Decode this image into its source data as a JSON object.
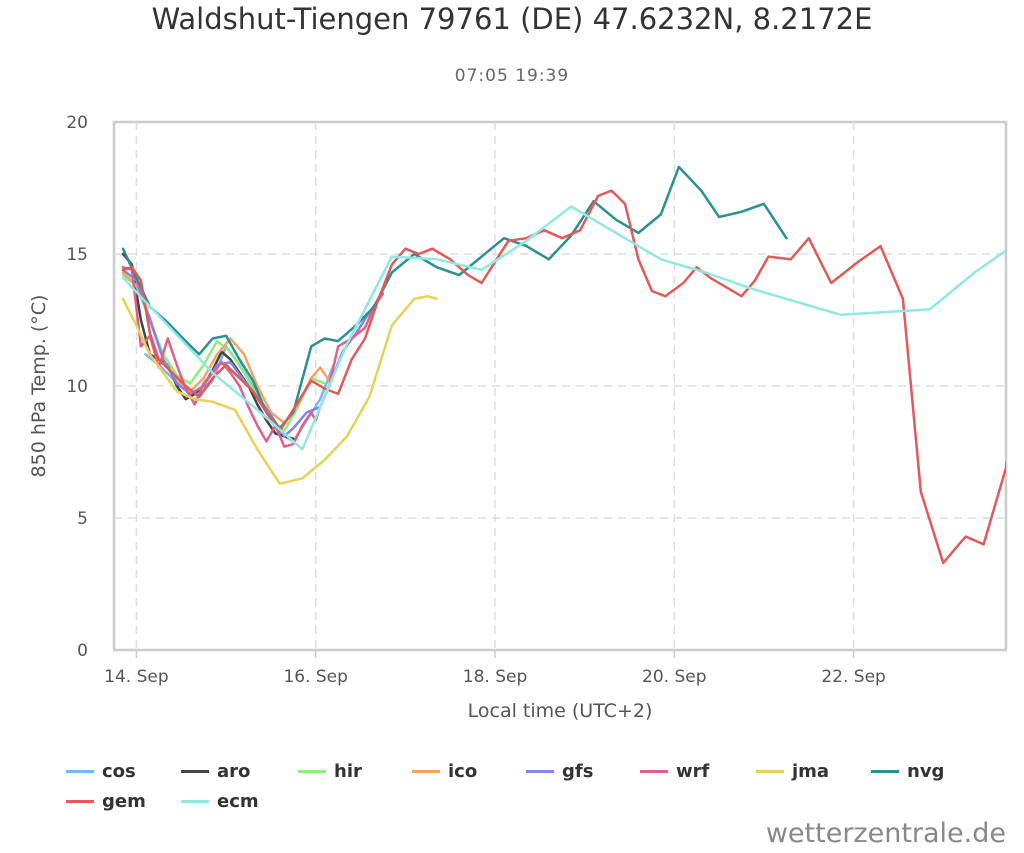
{
  "title": "Waldshut-Tiengen 79761 (DE) 47.6232N, 8.2172E",
  "subtitle": "07:05 19:39",
  "watermark": "wetterzentrale.de",
  "chart_data": {
    "type": "line",
    "title": "Waldshut-Tiengen 79761 (DE) 47.6232N, 8.2172E",
    "subtitle": "07:05 19:39",
    "xlabel": "Local time (UTC+2)",
    "ylabel": "850 hPa Temp. (°C)",
    "xlim": [
      13.6,
      23.55
    ],
    "ylim": [
      0,
      20
    ],
    "y_ticks": [
      0,
      5,
      10,
      15,
      20
    ],
    "x_ticks": [
      {
        "value": 13.85,
        "label": "14. Sep"
      },
      {
        "value": 15.85,
        "label": "16. Sep"
      },
      {
        "value": 17.85,
        "label": "18. Sep"
      },
      {
        "value": 19.85,
        "label": "20. Sep"
      },
      {
        "value": 21.85,
        "label": "22. Sep"
      }
    ],
    "grid": true,
    "legend_position": "bottom-left",
    "series": [
      {
        "name": "cos",
        "color": "#7cb5ec",
        "points": [
          [
            13.95,
            11.2
          ],
          [
            14.1,
            10.8
          ],
          [
            14.25,
            10.3
          ],
          [
            14.4,
            9.9
          ],
          [
            14.55,
            9.6
          ],
          [
            14.7,
            10.2
          ],
          [
            14.85,
            11.5
          ],
          [
            15.0,
            10.8
          ],
          [
            15.15,
            10.0
          ],
          [
            15.3,
            9.0
          ],
          [
            15.45,
            8.2
          ],
          [
            15.6,
            7.9
          ],
          [
            15.75,
            8.7
          ],
          [
            15.9,
            9.5
          ],
          [
            16.05,
            10.8
          ]
        ]
      },
      {
        "name": "aro",
        "color": "#434348",
        "points": [
          [
            13.7,
            15.0
          ],
          [
            13.8,
            14.6
          ],
          [
            13.9,
            12.5
          ],
          [
            14.0,
            11.2
          ],
          [
            14.1,
            11.0
          ],
          [
            14.2,
            10.8
          ],
          [
            14.3,
            10.0
          ],
          [
            14.4,
            9.5
          ],
          [
            14.5,
            9.7
          ],
          [
            14.6,
            10.0
          ],
          [
            14.7,
            10.6
          ],
          [
            14.8,
            11.3
          ],
          [
            14.9,
            11.0
          ],
          [
            15.0,
            10.5
          ],
          [
            15.1,
            10.0
          ],
          [
            15.2,
            9.3
          ],
          [
            15.3,
            8.7
          ],
          [
            15.4,
            8.2
          ],
          [
            15.5,
            8.1
          ],
          [
            15.6,
            8.0
          ]
        ]
      },
      {
        "name": "hir",
        "color": "#90ed7d",
        "points": [
          [
            13.7,
            14.2
          ],
          [
            13.85,
            13.8
          ],
          [
            14.0,
            12.5
          ],
          [
            14.15,
            11.2
          ],
          [
            14.3,
            10.4
          ],
          [
            14.45,
            10.1
          ],
          [
            14.6,
            10.8
          ],
          [
            14.75,
            11.7
          ],
          [
            14.9,
            11.3
          ],
          [
            15.05,
            10.5
          ],
          [
            15.2,
            9.6
          ],
          [
            15.35,
            8.7
          ],
          [
            15.5,
            8.3
          ],
          [
            15.65,
            9.2
          ],
          [
            15.8,
            10.3
          ],
          [
            15.95,
            10.1
          ]
        ]
      },
      {
        "name": "ico",
        "color": "#f7a35c",
        "points": [
          [
            13.7,
            14.3
          ],
          [
            13.85,
            13.8
          ],
          [
            14.0,
            12.6
          ],
          [
            14.15,
            11.0
          ],
          [
            14.3,
            10.2
          ],
          [
            14.45,
            9.8
          ],
          [
            14.6,
            10.3
          ],
          [
            14.75,
            11.2
          ],
          [
            14.9,
            11.8
          ],
          [
            15.05,
            11.2
          ],
          [
            15.2,
            10.0
          ],
          [
            15.35,
            9.0
          ],
          [
            15.5,
            8.6
          ],
          [
            15.65,
            9.3
          ],
          [
            15.8,
            10.3
          ],
          [
            15.9,
            10.7
          ],
          [
            16.0,
            10.2
          ],
          [
            16.05,
            10.6
          ]
        ]
      },
      {
        "name": "gfs",
        "color": "#8085e9",
        "points": [
          [
            13.7,
            14.4
          ],
          [
            13.85,
            14.0
          ],
          [
            14.0,
            12.5
          ],
          [
            14.15,
            11.0
          ],
          [
            14.3,
            10.1
          ],
          [
            14.45,
            9.7
          ],
          [
            14.6,
            10.0
          ],
          [
            14.75,
            10.8
          ],
          [
            14.9,
            10.9
          ],
          [
            15.05,
            10.2
          ],
          [
            15.2,
            9.6
          ],
          [
            15.35,
            8.9
          ],
          [
            15.5,
            8.1
          ],
          [
            15.6,
            8.4
          ],
          [
            15.75,
            9.0
          ],
          [
            15.9,
            9.2
          ],
          [
            16.0,
            10.0
          ],
          [
            16.15,
            11.3
          ],
          [
            16.3,
            12.0
          ],
          [
            16.45,
            12.8
          ],
          [
            16.6,
            13.5
          ]
        ]
      },
      {
        "name": "wrf",
        "color": "#e0608a",
        "points": [
          [
            13.7,
            14.5
          ],
          [
            13.8,
            14.4
          ],
          [
            13.9,
            11.5
          ],
          [
            14.0,
            11.9
          ],
          [
            14.1,
            10.7
          ],
          [
            14.2,
            11.8
          ],
          [
            14.3,
            10.8
          ],
          [
            14.4,
            9.9
          ],
          [
            14.5,
            9.3
          ],
          [
            14.6,
            10.1
          ],
          [
            14.7,
            10.5
          ],
          [
            14.8,
            10.9
          ],
          [
            14.9,
            10.5
          ],
          [
            15.0,
            10.0
          ],
          [
            15.1,
            9.2
          ],
          [
            15.2,
            8.5
          ],
          [
            15.3,
            7.9
          ],
          [
            15.4,
            8.5
          ],
          [
            15.5,
            7.7
          ],
          [
            15.6,
            7.8
          ],
          [
            15.7,
            8.5
          ],
          [
            15.8,
            9.0
          ],
          [
            15.85,
            8.7
          ],
          [
            15.9,
            9.2
          ],
          [
            16.0,
            10.0
          ],
          [
            16.1,
            11.5
          ],
          [
            16.25,
            11.8
          ],
          [
            16.4,
            12.2
          ],
          [
            16.5,
            13.0
          ],
          [
            16.6,
            13.5
          ]
        ]
      },
      {
        "name": "jma",
        "color": "#e4d354",
        "points": [
          [
            13.7,
            13.3
          ],
          [
            13.85,
            12.3
          ],
          [
            14.0,
            11.2
          ],
          [
            14.15,
            10.5
          ],
          [
            14.3,
            9.8
          ],
          [
            14.5,
            9.5
          ],
          [
            14.7,
            9.4
          ],
          [
            14.95,
            9.1
          ],
          [
            15.2,
            7.6
          ],
          [
            15.45,
            6.3
          ],
          [
            15.7,
            6.5
          ],
          [
            15.95,
            7.2
          ],
          [
            16.2,
            8.1
          ],
          [
            16.45,
            9.6
          ],
          [
            16.7,
            12.3
          ],
          [
            16.95,
            13.3
          ],
          [
            17.1,
            13.4
          ],
          [
            17.2,
            13.3
          ]
        ]
      },
      {
        "name": "nvg",
        "color": "#2b908f",
        "points": [
          [
            13.7,
            15.2
          ],
          [
            14.0,
            13.0
          ],
          [
            14.2,
            12.4
          ],
          [
            14.4,
            11.7
          ],
          [
            14.55,
            11.2
          ],
          [
            14.7,
            11.8
          ],
          [
            14.85,
            11.9
          ],
          [
            15.0,
            11.0
          ],
          [
            15.15,
            10.2
          ],
          [
            15.3,
            9.0
          ],
          [
            15.45,
            8.4
          ],
          [
            15.6,
            9.0
          ],
          [
            15.8,
            11.5
          ],
          [
            15.95,
            11.8
          ],
          [
            16.1,
            11.7
          ],
          [
            16.3,
            12.3
          ],
          [
            16.5,
            13.0
          ],
          [
            16.7,
            14.3
          ],
          [
            16.95,
            15.0
          ],
          [
            17.2,
            14.5
          ],
          [
            17.45,
            14.2
          ],
          [
            17.7,
            14.9
          ],
          [
            17.95,
            15.6
          ],
          [
            18.2,
            15.3
          ],
          [
            18.45,
            14.8
          ],
          [
            18.7,
            15.7
          ],
          [
            18.95,
            17.0
          ],
          [
            19.2,
            16.3
          ],
          [
            19.45,
            15.8
          ],
          [
            19.7,
            16.5
          ],
          [
            19.9,
            18.3
          ],
          [
            20.15,
            17.4
          ],
          [
            20.35,
            16.4
          ],
          [
            20.6,
            16.6
          ],
          [
            20.85,
            16.9
          ],
          [
            21.1,
            15.6
          ]
        ]
      },
      {
        "name": "gem",
        "color": "#e05a5a",
        "points": [
          [
            13.7,
            14.4
          ],
          [
            13.8,
            14.5
          ],
          [
            13.9,
            14.0
          ],
          [
            14.0,
            12.0
          ],
          [
            14.1,
            11.0
          ],
          [
            14.25,
            10.5
          ],
          [
            14.4,
            10.0
          ],
          [
            14.55,
            9.6
          ],
          [
            14.7,
            10.3
          ],
          [
            14.85,
            10.8
          ],
          [
            15.0,
            10.3
          ],
          [
            15.15,
            9.8
          ],
          [
            15.3,
            9.0
          ],
          [
            15.45,
            8.3
          ],
          [
            15.6,
            9.1
          ],
          [
            15.8,
            10.2
          ],
          [
            15.95,
            9.9
          ],
          [
            16.1,
            9.7
          ],
          [
            16.25,
            11.0
          ],
          [
            16.4,
            11.8
          ],
          [
            16.55,
            13.3
          ],
          [
            16.7,
            14.6
          ],
          [
            16.85,
            15.2
          ],
          [
            17.0,
            15.0
          ],
          [
            17.15,
            15.2
          ],
          [
            17.35,
            14.8
          ],
          [
            17.55,
            14.2
          ],
          [
            17.7,
            13.9
          ],
          [
            17.85,
            14.7
          ],
          [
            18.0,
            15.5
          ],
          [
            18.2,
            15.6
          ],
          [
            18.4,
            15.9
          ],
          [
            18.6,
            15.6
          ],
          [
            18.8,
            15.9
          ],
          [
            19.0,
            17.2
          ],
          [
            19.15,
            17.4
          ],
          [
            19.3,
            16.9
          ],
          [
            19.45,
            14.8
          ],
          [
            19.6,
            13.6
          ],
          [
            19.75,
            13.4
          ],
          [
            19.95,
            13.9
          ],
          [
            20.1,
            14.5
          ],
          [
            20.25,
            14.1
          ],
          [
            20.45,
            13.7
          ],
          [
            20.6,
            13.4
          ],
          [
            20.75,
            14.0
          ],
          [
            20.9,
            14.9
          ],
          [
            21.15,
            14.8
          ],
          [
            21.35,
            15.6
          ],
          [
            21.6,
            13.9
          ],
          [
            21.9,
            14.7
          ],
          [
            22.15,
            15.3
          ],
          [
            22.4,
            13.3
          ],
          [
            22.6,
            6.0
          ],
          [
            22.85,
            3.3
          ],
          [
            23.1,
            4.3
          ],
          [
            23.3,
            4.0
          ],
          [
            23.55,
            6.9
          ],
          [
            23.75,
            11.0
          ]
        ]
      },
      {
        "name": "ecm",
        "color": "#91e8e1",
        "points": [
          [
            13.7,
            14.1
          ],
          [
            14.2,
            12.3
          ],
          [
            14.7,
            10.5
          ],
          [
            15.2,
            9.1
          ],
          [
            15.7,
            7.6
          ],
          [
            16.2,
            11.6
          ],
          [
            16.7,
            14.9
          ],
          [
            17.2,
            14.8
          ],
          [
            17.7,
            14.4
          ],
          [
            18.2,
            15.5
          ],
          [
            18.7,
            16.8
          ],
          [
            19.2,
            15.8
          ],
          [
            19.7,
            14.8
          ],
          [
            20.2,
            14.3
          ],
          [
            20.7,
            13.7
          ],
          [
            21.2,
            13.2
          ],
          [
            21.7,
            12.7
          ],
          [
            22.2,
            12.8
          ],
          [
            22.7,
            12.9
          ],
          [
            23.2,
            14.3
          ],
          [
            23.75,
            15.6
          ]
        ]
      }
    ]
  }
}
